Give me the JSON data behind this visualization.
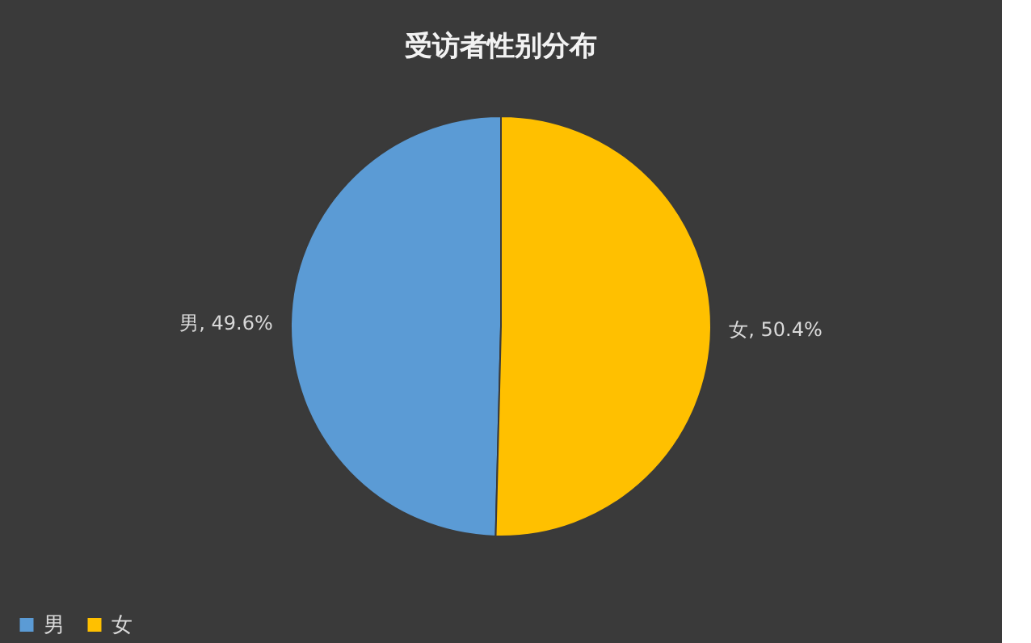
{
  "chart_data": {
    "type": "pie",
    "title": "受访者性别分布",
    "categories": [
      "男",
      "女"
    ],
    "values": [
      49.6,
      50.4
    ],
    "colors": [
      "#5b9bd5",
      "#ffc000"
    ],
    "value_labels": [
      "男, 49.6%",
      "女, 50.4%"
    ],
    "legend": "bottom"
  }
}
